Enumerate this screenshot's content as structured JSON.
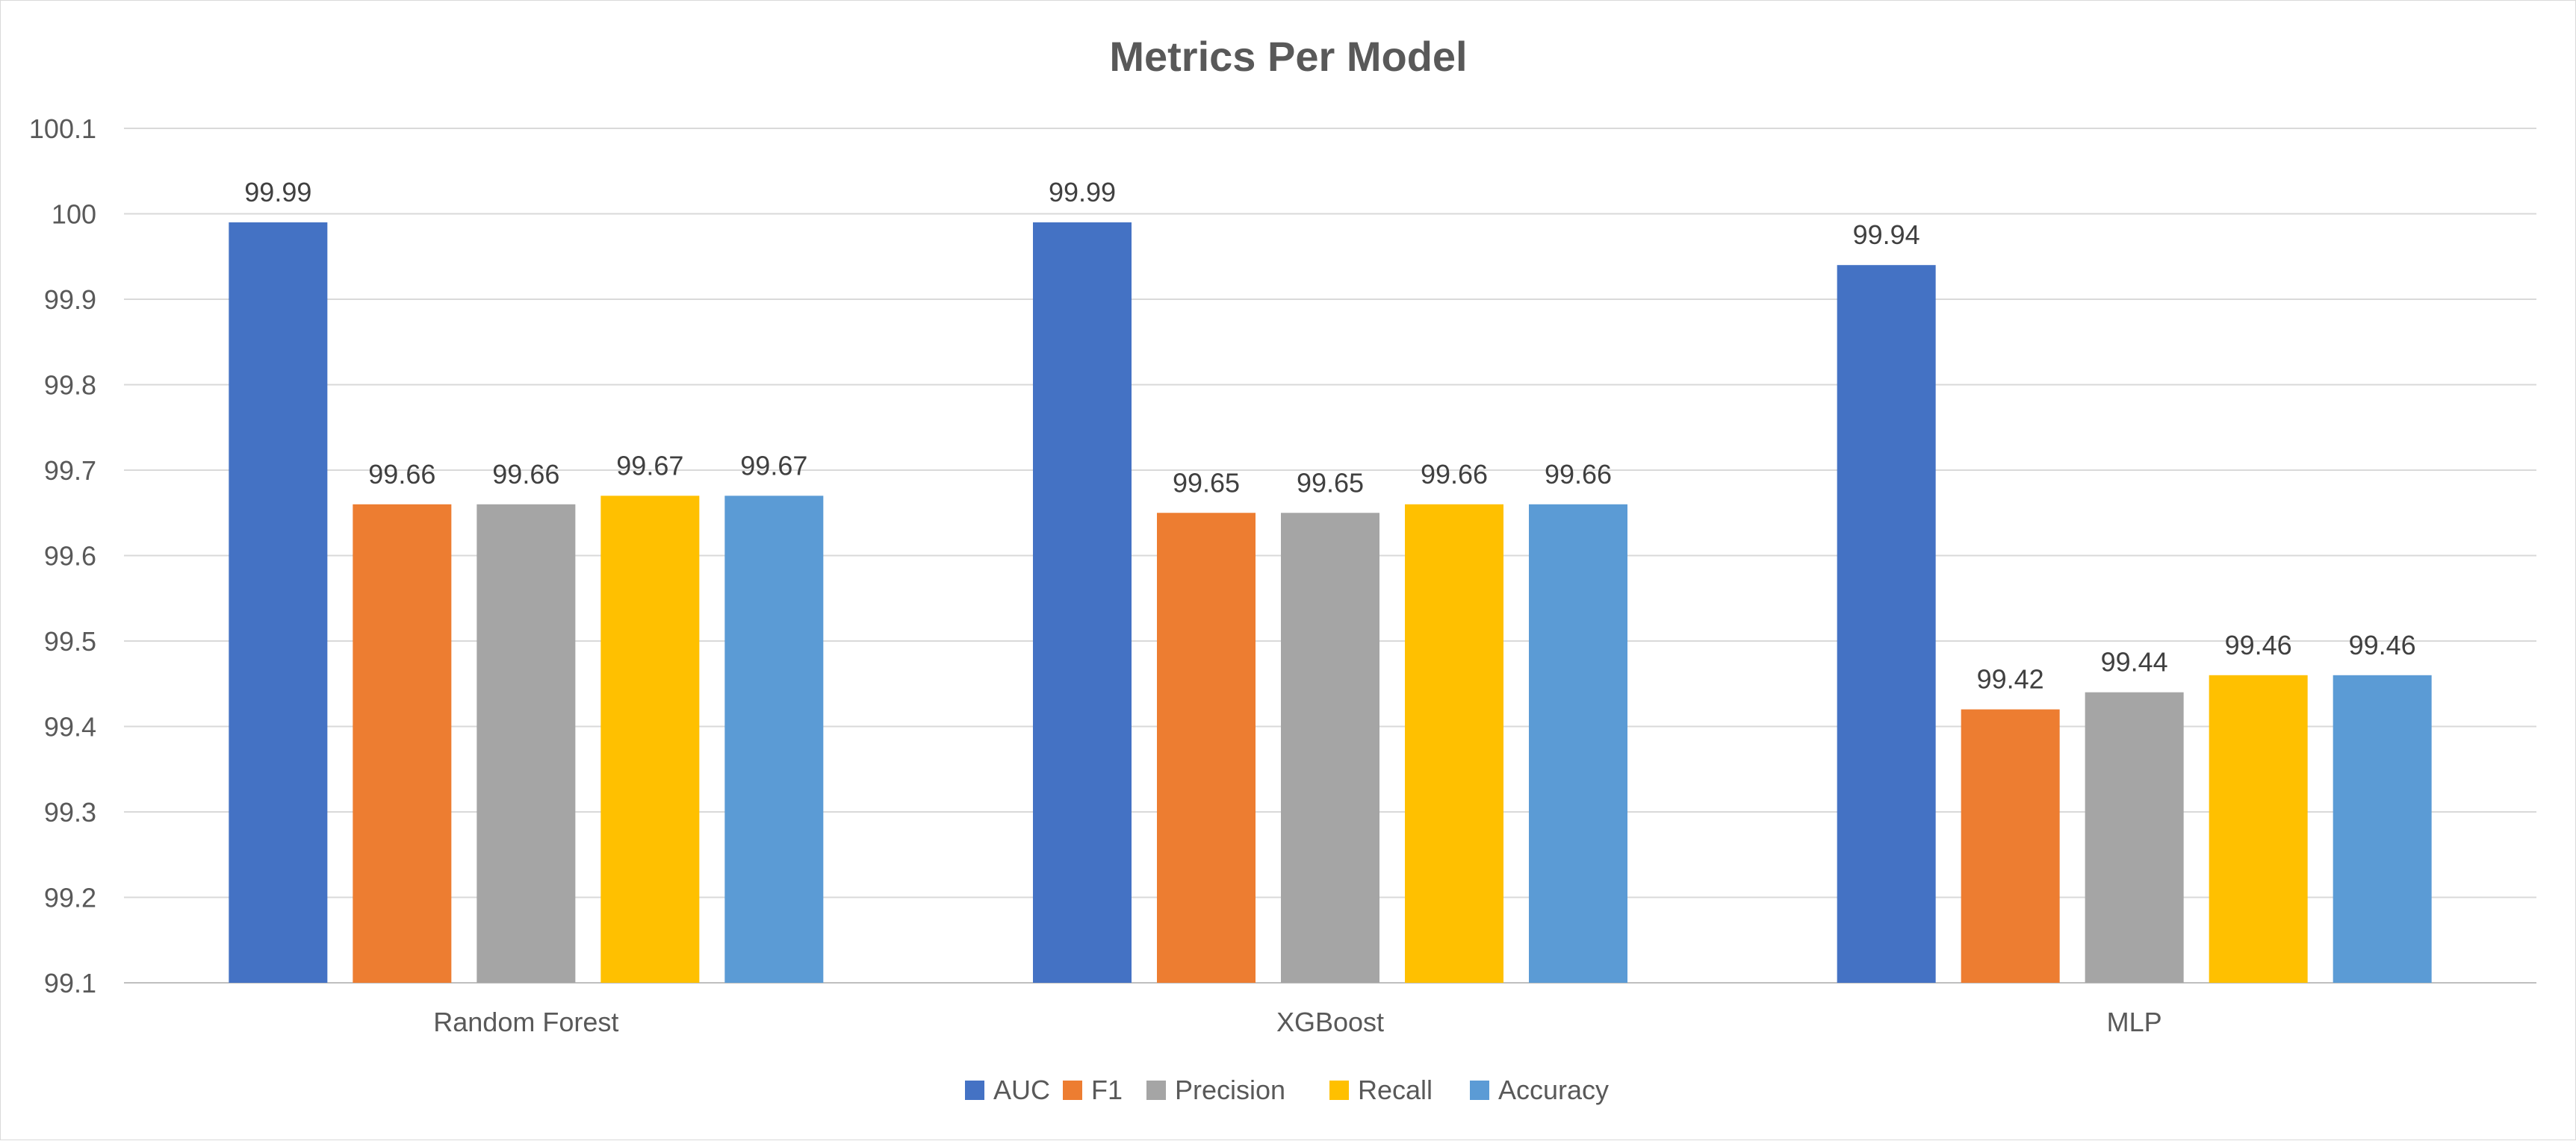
{
  "chart_data": {
    "type": "bar",
    "title": "Metrics Per Model",
    "xlabel": "",
    "ylabel": "",
    "categories": [
      "Random Forest",
      "XGBoost",
      "MLP"
    ],
    "series": [
      {
        "name": "AUC",
        "color": "#4472C4",
        "values": [
          99.99,
          99.99,
          99.94
        ]
      },
      {
        "name": "F1",
        "color": "#ED7D31",
        "values": [
          99.66,
          99.65,
          99.42
        ]
      },
      {
        "name": "Precision",
        "color": "#A5A5A5",
        "values": [
          99.66,
          99.65,
          99.44
        ]
      },
      {
        "name": "Recall",
        "color": "#FFC000",
        "values": [
          99.67,
          99.66,
          99.46
        ]
      },
      {
        "name": "Accuracy",
        "color": "#5B9BD5",
        "values": [
          99.67,
          99.66,
          99.46
        ]
      }
    ],
    "ylim": [
      99.1,
      100.1
    ],
    "yticks": [
      "99.1",
      "99.2",
      "99.3",
      "99.4",
      "99.5",
      "99.6",
      "99.7",
      "99.8",
      "99.9",
      "100",
      "100.1"
    ],
    "data_labels": true,
    "grid": true,
    "legend_position": "bottom"
  }
}
